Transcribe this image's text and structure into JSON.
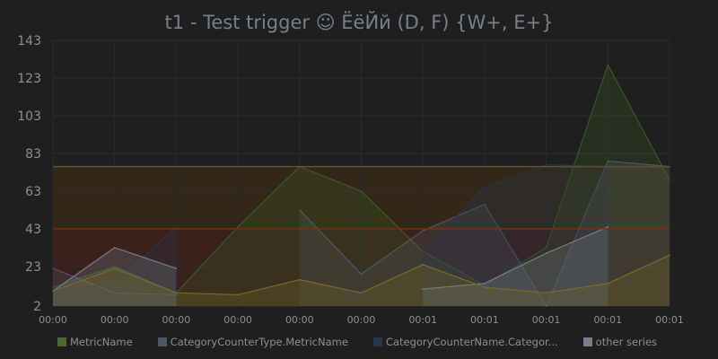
{
  "chart_data": {
    "type": "area",
    "title": "t1 - Test trigger ☺ ЁёЙй (D, F) {W+, E+}",
    "x": [
      "00:00",
      "00:00",
      "00:00",
      "00:00",
      "00:00",
      "00:00",
      "00:01",
      "00:01",
      "00:01",
      "00:01",
      "00:01"
    ],
    "ylim": [
      2,
      143
    ],
    "yticks": [
      2,
      23,
      43,
      63,
      83,
      103,
      123,
      143
    ],
    "grid": true,
    "legend_position": "bottom",
    "threshold_bands": [
      {
        "from": 2,
        "to": 43,
        "color": "#5a2418"
      },
      {
        "from": 43,
        "to": 76,
        "color": "#4a3010"
      }
    ],
    "threshold_lines": [
      {
        "value": 43,
        "color": "#7a2e1a"
      },
      {
        "value": 76,
        "color": "#6e4c1e"
      }
    ],
    "series": [
      {
        "name": "MetricName",
        "color": "#3d5a25",
        "values": [
          12,
          23,
          9,
          44,
          76,
          63,
          31,
          13,
          33,
          130,
          69
        ]
      },
      {
        "name": "CategoryCounterType.MetricName",
        "color": "#4e5864",
        "values": [
          22,
          9,
          8,
          null,
          53,
          19,
          42,
          56,
          2,
          79,
          76
        ]
      },
      {
        "name": "CategoryCounterName.Categor...",
        "color": "#27364a",
        "values": [
          10,
          14,
          44,
          null,
          null,
          null,
          31,
          65,
          77,
          76,
          null
        ]
      },
      {
        "name": "other series",
        "color": "#75808c",
        "values": [
          10,
          33,
          22,
          null,
          null,
          null,
          11,
          14,
          30,
          44,
          null
        ]
      },
      {
        "name": "",
        "color": "#7a6c2c",
        "values": [
          10,
          22,
          9,
          8,
          16,
          9,
          24,
          12,
          9,
          14,
          29
        ]
      }
    ]
  },
  "legend": [
    {
      "label": "MetricName",
      "color": "#4a6a2a"
    },
    {
      "label": "CategoryCounterType.MetricName",
      "color": "#4e5864"
    },
    {
      "label": "CategoryCounterName.Categor...",
      "color": "#27364a"
    },
    {
      "label": "other series",
      "color": "#75808c"
    }
  ]
}
